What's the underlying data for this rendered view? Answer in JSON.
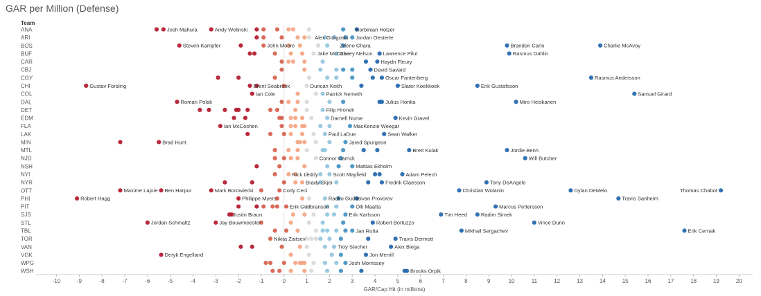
{
  "chart_data": {
    "type": "scatter",
    "title": "GAR per Million (Defense)",
    "row_header": "Team",
    "xlabel": "GAR/Cap Hit (in millions)",
    "xlim": [
      -10.9,
      20.6
    ],
    "xticks": [
      -10,
      -9,
      -8,
      -7,
      -6,
      -5,
      -4,
      -3,
      -2,
      -1,
      0,
      1,
      2,
      3,
      4,
      5,
      6,
      7,
      8,
      9,
      10,
      11,
      12,
      13,
      14,
      15,
      16,
      17,
      18,
      19,
      20
    ],
    "colors": {
      "dark_red": "#b2182b",
      "red": "#d6604d",
      "light_red": "#f4a582",
      "neutral": "#d9d9d9",
      "light_blue": "#92c5de",
      "blue": "#4393c3",
      "dark_blue": "#2166ac"
    },
    "teams": [
      {
        "team": "ANA",
        "points": [
          -5.6,
          -5.3,
          -3.2,
          -1.2,
          -0.9,
          -0.3,
          0.2,
          0.4,
          1.1,
          2.6,
          3.2
        ],
        "labels": [
          {
            "x": -5.3,
            "name": "Josh Mahura"
          },
          {
            "x": -3.2,
            "name": "Andy Welinski"
          },
          {
            "x": 3.0,
            "name": "Korbinian Holzer"
          }
        ]
      },
      {
        "team": "ARI",
        "points": [
          -1.2,
          -0.9,
          -0.1,
          0.6,
          0.9,
          1.1,
          1.8,
          2.2,
          2.7,
          3.0
        ],
        "labels": [
          {
            "x": 1.2,
            "name": "Alex Goligoski"
          },
          {
            "x": 3.0,
            "name": "Jordan Oesterle"
          }
        ]
      },
      {
        "team": "BOS",
        "points": [
          -4.6,
          -1.9,
          -0.9,
          0.2,
          0.7,
          1.5,
          1.9,
          2.6,
          9.8,
          13.9
        ],
        "labels": [
          {
            "x": -4.6,
            "name": "Steven Kampfer"
          },
          {
            "x": -0.9,
            "name": "John Moore"
          },
          {
            "x": 2.3,
            "name": "Zdeno Chara"
          },
          {
            "x": 9.8,
            "name": "Brandon Carlo"
          },
          {
            "x": 13.9,
            "name": "Charlie McAvoy"
          }
        ]
      },
      {
        "team": "BUF",
        "points": [
          -1.5,
          -1.3,
          -0.4,
          0.3,
          0.8,
          1.3,
          2.3,
          4.2,
          9.9
        ],
        "labels": [
          {
            "x": 1.3,
            "name": "Jake McCabe"
          },
          {
            "x": 2.3,
            "name": "Casey Nelson"
          },
          {
            "x": 4.2,
            "name": "Lawrence Pilut"
          },
          {
            "x": 9.9,
            "name": "Rasmus Dahlin"
          }
        ]
      },
      {
        "team": "CAR",
        "points": [
          -0.1,
          0.2,
          0.4,
          0.9,
          1.7,
          3.6,
          4.1
        ],
        "labels": [
          {
            "x": 4.1,
            "name": "Haydn Fleury"
          }
        ]
      },
      {
        "team": "CBJ",
        "points": [
          -0.1,
          0.9,
          1.6,
          2.3,
          2.6,
          3.0,
          3.8
        ],
        "labels": [
          {
            "x": 3.8,
            "name": "David Savard"
          }
        ]
      },
      {
        "team": "CGY",
        "points": [
          -2.9,
          -2.0,
          -0.4,
          1.1,
          1.9,
          2.3,
          3.0,
          3.9,
          4.3,
          13.5
        ],
        "labels": [
          {
            "x": 4.3,
            "name": "Oscar Fantenberg"
          },
          {
            "x": 13.5,
            "name": "Rasmus Andersson"
          }
        ]
      },
      {
        "team": "CHI",
        "points": [
          -8.7,
          -1.5,
          -1.2,
          0.0,
          1.0,
          3.4,
          5.0,
          8.5
        ],
        "labels": [
          {
            "x": -8.7,
            "name": "Gustav Forsling"
          },
          {
            "x": -1.5,
            "name": "Brent Seabrook"
          },
          {
            "x": 1.0,
            "name": "Duncan Keith"
          },
          {
            "x": 5.0,
            "name": "Slater Koekkoek"
          },
          {
            "x": 8.5,
            "name": "Erik Gustafsson"
          }
        ]
      },
      {
        "team": "COL",
        "points": [
          -1.4,
          0.6,
          1.4,
          1.7,
          15.4
        ],
        "labels": [
          {
            "x": -1.4,
            "name": "Ian Cole"
          },
          {
            "x": 1.7,
            "name": "Patrick Nemeth"
          },
          {
            "x": 15.4,
            "name": "Samuel Girard"
          }
        ]
      },
      {
        "team": "DAL",
        "points": [
          -4.7,
          -0.1,
          0.2,
          0.6,
          1.0,
          2.0,
          2.6,
          4.2,
          4.3,
          10.2
        ],
        "labels": [
          {
            "x": -4.7,
            "name": "Roman Polak"
          },
          {
            "x": 4.3,
            "name": "Julius Honka"
          },
          {
            "x": 10.2,
            "name": "Miro Heiskanen"
          }
        ]
      },
      {
        "team": "DET",
        "points": [
          -3.7,
          -3.3,
          -2.6,
          -2.1,
          -2.0,
          -1.6,
          -0.6,
          -0.3,
          0.5,
          1.0,
          1.7
        ],
        "labels": [
          {
            "x": 1.7,
            "name": "Filip Hronek"
          }
        ]
      },
      {
        "team": "EDM",
        "points": [
          -2.2,
          -1.7,
          -0.2,
          -0.1,
          0.3,
          0.5,
          0.8,
          1.2,
          1.9,
          4.9
        ],
        "labels": [
          {
            "x": 1.9,
            "name": "Darnell Nurse"
          },
          {
            "x": 4.9,
            "name": "Kevin Gravel"
          }
        ]
      },
      {
        "team": "FLA",
        "points": [
          -2.8,
          -0.1,
          0.3,
          0.5,
          0.8,
          0.9,
          1.6,
          2.0,
          2.9
        ],
        "labels": [
          {
            "x": -2.8,
            "name": "Ian McCoshen"
          },
          {
            "x": 2.9,
            "name": "MacKenzie Weegar"
          }
        ]
      },
      {
        "team": "LAK",
        "points": [
          -1.6,
          -0.6,
          0.0,
          0.3,
          0.8,
          1.3,
          1.8,
          4.4
        ],
        "labels": [
          {
            "x": 1.8,
            "name": "Paul LaDue"
          },
          {
            "x": 4.4,
            "name": "Sean Walker"
          }
        ]
      },
      {
        "team": "MIN",
        "points": [
          -7.2,
          -5.5,
          0.6,
          0.7,
          0.9,
          1.4,
          2.0,
          2.7
        ],
        "labels": [
          {
            "x": -5.5,
            "name": "Brad Hunt"
          },
          {
            "x": 2.7,
            "name": "Jared Spurgeon"
          }
        ]
      },
      {
        "team": "MTL",
        "points": [
          -0.4,
          0.2,
          0.6,
          1.0,
          1.7,
          1.8,
          2.6,
          3.5,
          4.1,
          5.5,
          9.8
        ],
        "labels": [
          {
            "x": 5.5,
            "name": "Brett Kulak"
          },
          {
            "x": 9.8,
            "name": "Jordie Benn"
          }
        ]
      },
      {
        "team": "NJD",
        "points": [
          -0.4,
          0.0,
          0.3,
          0.6,
          1.4,
          2.5,
          10.6
        ],
        "labels": [
          {
            "x": 1.4,
            "name": "Connor Carrick"
          },
          {
            "x": 10.6,
            "name": "Will Butcher"
          }
        ]
      },
      {
        "team": "NSH",
        "points": [
          -1.2,
          -0.2,
          0.9,
          1.9,
          2.4,
          3.0
        ],
        "labels": [
          {
            "x": 3.0,
            "name": "Mattias Ekholm"
          }
        ]
      },
      {
        "team": "NYI",
        "points": [
          -0.4,
          0.2,
          0.5,
          1.0,
          1.6,
          2.0,
          4.0,
          4.2,
          5.2
        ],
        "labels": [
          {
            "x": 0.2,
            "name": "Nick Leddy"
          },
          {
            "x": 2.0,
            "name": "Scott Mayfield"
          },
          {
            "x": 5.2,
            "name": "Adam Pelech"
          }
        ]
      },
      {
        "team": "NYR",
        "points": [
          -2.6,
          -1.4,
          0.0,
          0.5,
          0.8,
          1.6,
          2.3,
          3.7,
          4.3,
          8.9
        ],
        "labels": [
          {
            "x": 0.8,
            "name": "Brady Skjei"
          },
          {
            "x": 4.3,
            "name": "Fredrik Claesson"
          },
          {
            "x": 8.9,
            "name": "Tony DeAngelo"
          }
        ]
      },
      {
        "team": "OTT",
        "points": [
          -7.2,
          -5.4,
          -3.2,
          -1.0,
          -0.2,
          7.7,
          12.6,
          19.2
        ],
        "labels": [
          {
            "x": -7.2,
            "name": "Maxime Lajoie"
          },
          {
            "x": -5.4,
            "name": "Ben Harpur"
          },
          {
            "x": -3.2,
            "name": "Mark Borowiecki"
          },
          {
            "x": -0.2,
            "name": "Cody Ceci"
          },
          {
            "x": 7.7,
            "name": "Christian Wolanin"
          },
          {
            "x": 12.6,
            "name": "Dylan DeMelo"
          },
          {
            "x": 19.2,
            "name": "Thomas Chabot",
            "side": "left"
          }
        ]
      },
      {
        "team": "PHI",
        "points": [
          -9.1,
          -2.0,
          -0.3,
          0.8,
          1.1,
          1.8,
          2.4,
          3.2,
          14.7
        ],
        "labels": [
          {
            "x": -9.1,
            "name": "Robert Hagg"
          },
          {
            "x": -2.0,
            "name": "Philippe Myers"
          },
          {
            "x": 1.8,
            "name": "Radko Gudas"
          },
          {
            "x": 3.2,
            "name": "Ivan Provorov"
          },
          {
            "x": 14.7,
            "name": "Travis Sanheim"
          }
        ]
      },
      {
        "team": "PIT",
        "points": [
          -2.0,
          -1.2,
          -0.9,
          -0.5,
          -0.3,
          0.1,
          1.0,
          1.9,
          2.3,
          3.0,
          9.3
        ],
        "labels": [
          {
            "x": 0.1,
            "name": "Erik Gudbranson"
          },
          {
            "x": 3.0,
            "name": "Olli Maatta"
          },
          {
            "x": 9.3,
            "name": "Marcus Pettersson"
          }
        ]
      },
      {
        "team": "SJS",
        "points": [
          -2.4,
          -2.3,
          0.4,
          0.9,
          1.3,
          1.9,
          2.2,
          2.7,
          6.9,
          8.5
        ],
        "labels": [
          {
            "x": -2.4,
            "name": "Justin Braun"
          },
          {
            "x": 2.7,
            "name": "Erik Karlsson"
          },
          {
            "x": 6.9,
            "name": "Tim Heed"
          },
          {
            "x": 8.5,
            "name": "Radim Simek"
          }
        ]
      },
      {
        "team": "STL",
        "points": [
          -6.0,
          -3.0,
          -1.0,
          0.3,
          1.1,
          1.7,
          2.6,
          3.9,
          11.0
        ],
        "labels": [
          {
            "x": -6.0,
            "name": "Jordan Schmaltz"
          },
          {
            "x": -3.0,
            "name": "Jay Bouwmeester"
          },
          {
            "x": 3.9,
            "name": "Robert Bortuzzo"
          },
          {
            "x": 11.0,
            "name": "Vince Dunn"
          }
        ]
      },
      {
        "team": "TBL",
        "points": [
          -0.4,
          0.1,
          0.6,
          1.4,
          1.7,
          1.9,
          2.3,
          2.7,
          3.0,
          7.8,
          17.6
        ],
        "labels": [
          {
            "x": 3.0,
            "name": "Jan Rutta"
          },
          {
            "x": 7.8,
            "name": "Mikhail Sergachev"
          },
          {
            "x": 17.6,
            "name": "Erik Cernak"
          }
        ]
      },
      {
        "team": "TOR",
        "points": [
          -0.6,
          1.0,
          1.2,
          1.4,
          1.6,
          2.0,
          2.5,
          3.7,
          4.9
        ],
        "labels": [
          {
            "x": -0.6,
            "name": "Nikita Zaitsev"
          },
          {
            "x": 4.9,
            "name": "Travis Dermott"
          }
        ]
      },
      {
        "team": "VAN",
        "points": [
          -1.9,
          -1.4,
          -0.1,
          0.7,
          1.0,
          1.8,
          2.2,
          4.7
        ],
        "labels": [
          {
            "x": 2.2,
            "name": "Troy Stecher"
          },
          {
            "x": 4.7,
            "name": "Alex Biega"
          }
        ]
      },
      {
        "team": "VGK",
        "points": [
          -5.4,
          0.3,
          1.1,
          2.1,
          2.5,
          3.6
        ],
        "labels": [
          {
            "x": -5.4,
            "name": "Deryk Engelland"
          },
          {
            "x": 3.6,
            "name": "Jon Merrill"
          }
        ]
      },
      {
        "team": "WPG",
        "points": [
          -0.8,
          -0.6,
          0.0,
          0.5,
          0.7,
          0.8,
          0.9,
          1.3,
          1.8,
          2.3,
          2.7
        ],
        "labels": [
          {
            "x": 2.7,
            "name": "Josh Morrissey"
          }
        ]
      },
      {
        "team": "WSH",
        "points": [
          -0.5,
          -0.2,
          0.3,
          0.9,
          1.2,
          1.9,
          2.5,
          3.4,
          5.3,
          5.4
        ],
        "labels": [
          {
            "x": 5.4,
            "name": "Brooks Orpik"
          }
        ]
      }
    ]
  }
}
